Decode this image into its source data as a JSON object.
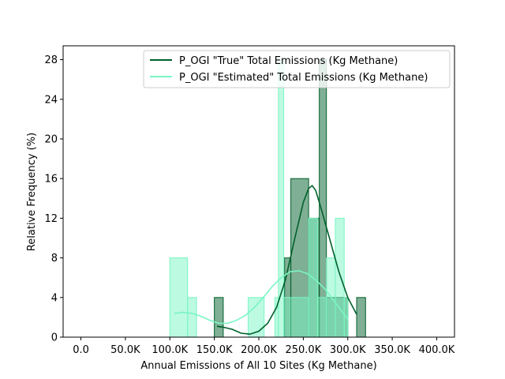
{
  "chart_data": {
    "type": "histogram",
    "title": "",
    "xlabel": "Annual Emissions of All 10 Sites (Kg Methane)",
    "ylabel": "Relative Frequency (%)",
    "xlim": [
      -20000,
      420000
    ],
    "ylim": [
      0,
      29.4
    ],
    "x_ticks": [
      0,
      50000,
      100000,
      150000,
      200000,
      250000,
      300000,
      350000,
      400000
    ],
    "x_tick_labels": [
      "0.0",
      "50.0K",
      "100.0K",
      "150.0K",
      "200.0K",
      "250.0K",
      "300.0K",
      "350.0K",
      "400.0K"
    ],
    "y_ticks": [
      0,
      4,
      8,
      12,
      16,
      20,
      24,
      28
    ],
    "y_tick_labels": [
      "0",
      "4",
      "8",
      "12",
      "16",
      "20",
      "24",
      "28"
    ],
    "grid": false,
    "legend_position": "top-right",
    "series": [
      {
        "name": "P_OGI \"True\" Total Emissions (Kg Methane)",
        "line_color": "#00602b",
        "bar_color": "#00602b",
        "bar_opacity": 0.5,
        "bars": [
          {
            "x0": 150000,
            "x1": 160000,
            "y": 4
          },
          {
            "x0": 229000,
            "x1": 236000,
            "y": 8
          },
          {
            "x0": 236000,
            "x1": 256000,
            "y": 16
          },
          {
            "x0": 256000,
            "x1": 268000,
            "y": 12
          },
          {
            "x0": 268000,
            "x1": 276000,
            "y": 28
          },
          {
            "x0": 276000,
            "x1": 300000,
            "y": 4
          },
          {
            "x0": 310000,
            "x1": 320000,
            "y": 4
          }
        ],
        "kde": [
          {
            "x": 153000,
            "y": 1.1
          },
          {
            "x": 160000,
            "y": 1.0
          },
          {
            "x": 170000,
            "y": 0.8
          },
          {
            "x": 180000,
            "y": 0.4
          },
          {
            "x": 190000,
            "y": 0.3
          },
          {
            "x": 200000,
            "y": 0.6
          },
          {
            "x": 210000,
            "y": 1.4
          },
          {
            "x": 220000,
            "y": 3.0
          },
          {
            "x": 230000,
            "y": 5.8
          },
          {
            "x": 240000,
            "y": 9.8
          },
          {
            "x": 250000,
            "y": 13.6
          },
          {
            "x": 256000,
            "y": 15.0
          },
          {
            "x": 260000,
            "y": 15.3
          },
          {
            "x": 264000,
            "y": 14.8
          },
          {
            "x": 270000,
            "y": 13.0
          },
          {
            "x": 280000,
            "y": 9.8
          },
          {
            "x": 290000,
            "y": 6.6
          },
          {
            "x": 300000,
            "y": 4.0
          },
          {
            "x": 310000,
            "y": 2.3
          }
        ]
      },
      {
        "name": "P_OGI \"Estimated\" Total Emissions (Kg Methane)",
        "line_color": "#7af5c4",
        "bar_color": "#7af5c4",
        "bar_opacity": 0.5,
        "bars": [
          {
            "x0": 100000,
            "x1": 120000,
            "y": 8
          },
          {
            "x0": 120000,
            "x1": 130000,
            "y": 4
          },
          {
            "x0": 188000,
            "x1": 206000,
            "y": 4
          },
          {
            "x0": 218000,
            "x1": 222000,
            "y": 4
          },
          {
            "x0": 222000,
            "x1": 228000,
            "y": 28
          },
          {
            "x0": 228000,
            "x1": 256000,
            "y": 4
          },
          {
            "x0": 256000,
            "x1": 266000,
            "y": 12
          },
          {
            "x0": 266000,
            "x1": 276000,
            "y": 4
          },
          {
            "x0": 276000,
            "x1": 286000,
            "y": 8
          },
          {
            "x0": 286000,
            "x1": 296000,
            "y": 12
          },
          {
            "x0": 296000,
            "x1": 300000,
            "y": 4
          }
        ],
        "kde": [
          {
            "x": 105000,
            "y": 2.4
          },
          {
            "x": 115000,
            "y": 2.5
          },
          {
            "x": 125000,
            "y": 2.4
          },
          {
            "x": 135000,
            "y": 2.1
          },
          {
            "x": 145000,
            "y": 1.7
          },
          {
            "x": 155000,
            "y": 1.4
          },
          {
            "x": 165000,
            "y": 1.4
          },
          {
            "x": 175000,
            "y": 1.7
          },
          {
            "x": 185000,
            "y": 2.2
          },
          {
            "x": 195000,
            "y": 3.0
          },
          {
            "x": 205000,
            "y": 4.0
          },
          {
            "x": 215000,
            "y": 5.1
          },
          {
            "x": 225000,
            "y": 6.0
          },
          {
            "x": 235000,
            "y": 6.6
          },
          {
            "x": 245000,
            "y": 6.7
          },
          {
            "x": 255000,
            "y": 6.4
          },
          {
            "x": 265000,
            "y": 5.7
          },
          {
            "x": 275000,
            "y": 4.8
          },
          {
            "x": 285000,
            "y": 3.6
          },
          {
            "x": 295000,
            "y": 2.4
          },
          {
            "x": 300000,
            "y": 1.8
          }
        ]
      }
    ]
  }
}
